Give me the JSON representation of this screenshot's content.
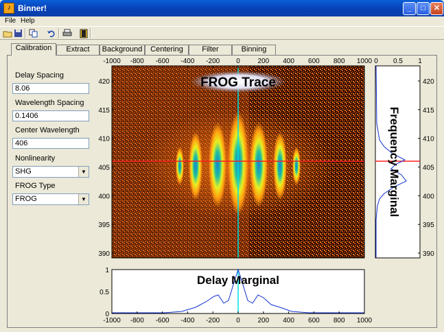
{
  "window": {
    "title": "Binner!",
    "icon": "matlab-icon"
  },
  "menu": [
    "File",
    "Help"
  ],
  "toolbar": [
    "open-icon",
    "save-icon",
    "copy-icon",
    "undo-icon",
    "print-icon",
    "door-icon"
  ],
  "tabs": [
    "Calibration",
    "Extract",
    "Background",
    "Centering",
    "Filter",
    "Binning"
  ],
  "active_tab": "Calibration",
  "form": {
    "delay_spacing_label": "Delay Spacing",
    "delay_spacing_value": "8.06",
    "wavelength_spacing_label": "Wavelength Spacing",
    "wavelength_spacing_value": "0.1406",
    "center_wavelength_label": "Center Wavelength",
    "center_wavelength_value": "406",
    "nonlinearity_label": "Nonlinearity",
    "nonlinearity_value": "SHG",
    "frog_type_label": "FROG Type",
    "frog_type_value": "FROG"
  },
  "plots": {
    "trace_title": "FROG Trace",
    "delay_marginal_title": "Delay Marginal",
    "frequency_marginal_title": "Frequency Marginal",
    "x_ticks": [
      "-1000",
      "-800",
      "-600",
      "-400",
      "-200",
      "0",
      "200",
      "400",
      "600",
      "800",
      "1000"
    ],
    "y_ticks": [
      "420",
      "415",
      "410",
      "405",
      "400",
      "395",
      "390"
    ],
    "dm_y_ticks": [
      "1",
      "0.5",
      "0"
    ],
    "fm_x_ticks": [
      "0",
      "0.5",
      "1"
    ]
  },
  "colors": {
    "cursor_vertical": "#00e0e0",
    "cursor_horizontal": "#ff2020"
  }
}
